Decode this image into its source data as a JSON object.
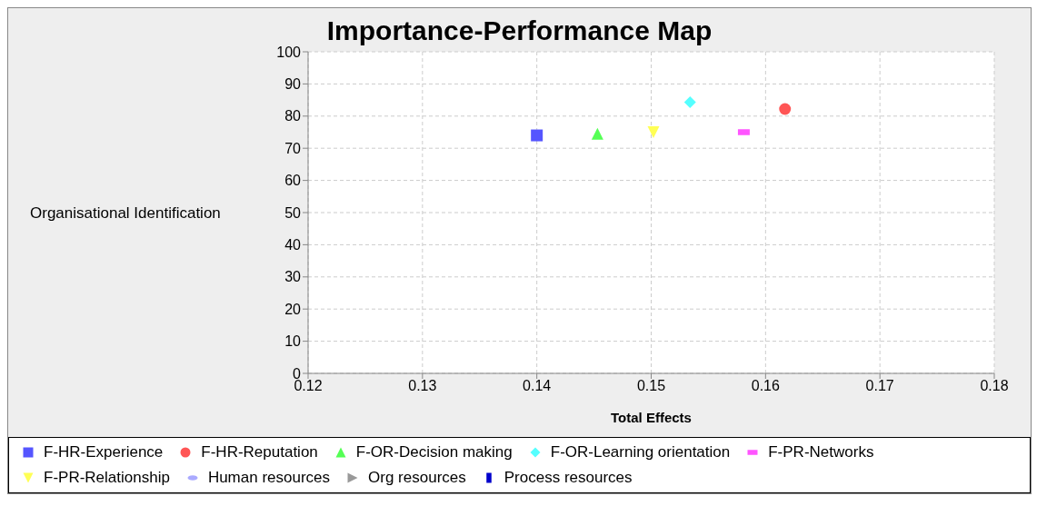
{
  "chart_data": {
    "type": "scatter",
    "title": "Importance-Performance Map",
    "xlabel": "Total Effects",
    "ylabel": "Organisational Identification",
    "xlim": [
      0.12,
      0.18
    ],
    "xticks": [
      0.12,
      0.13,
      0.14,
      0.15,
      0.16,
      0.17,
      0.18
    ],
    "ylim": [
      0,
      100
    ],
    "yticks": [
      0,
      10,
      20,
      30,
      40,
      50,
      60,
      70,
      80,
      90,
      100
    ],
    "grid": true,
    "legend": "bottom",
    "series": [
      {
        "name": "F-HR-Experience",
        "color": "#5555ff",
        "marker": "square",
        "x": [
          0.14
        ],
        "values": [
          74
        ]
      },
      {
        "name": "F-HR-Reputation",
        "color": "#ff5555",
        "marker": "circle",
        "x": [
          0.1617
        ],
        "values": [
          82.2
        ]
      },
      {
        "name": "F-OR-Decision making",
        "color": "#55ff55",
        "marker": "triangle",
        "x": [
          0.1453
        ],
        "values": [
          74.5
        ]
      },
      {
        "name": "F-OR-Learning orientation",
        "color": "#55ffff",
        "marker": "diamond",
        "x": [
          0.1534
        ],
        "values": [
          84.3
        ]
      },
      {
        "name": "F-PR-Networks",
        "color": "#ff55ff",
        "marker": "rect",
        "x": [
          0.1581
        ],
        "values": [
          75
        ]
      },
      {
        "name": "F-PR-Relationship",
        "color": "#ffff55",
        "marker": "triangle-down",
        "x": [
          0.1502
        ],
        "values": [
          75
        ]
      },
      {
        "name": "Human resources",
        "color": "#aaaaff",
        "marker": "ellipse"
      },
      {
        "name": "Org resources",
        "color": "#999999",
        "marker": "triangle-right"
      },
      {
        "name": "Process resources",
        "color": "#0000cc",
        "marker": "bar"
      }
    ]
  }
}
